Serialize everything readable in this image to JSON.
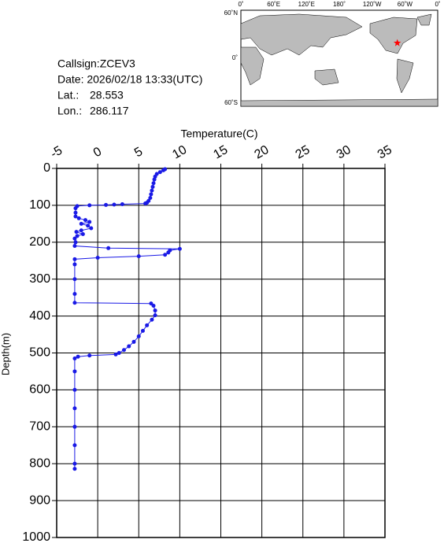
{
  "info": {
    "callsign": "Callsign:ZCEV3",
    "date": "Date:  2026/02/18 13:33(UTC)",
    "lat_label": "Lat.:",
    "lat": 28.553,
    "lon_label": "Lon.:",
    "lon": 286.117
  },
  "map": {
    "lon_labels": [
      "0˚",
      "60˚E",
      "120˚E",
      "180˚",
      "120˚W",
      "60˚W",
      "0˚"
    ],
    "lat_labels": [
      "60˚N",
      "0˚",
      "60˚S"
    ]
  },
  "chart_data": {
    "type": "line",
    "xlabel": "Temperature(C)",
    "ylabel": "Depth(m)",
    "color": "#1a1ae6",
    "grid": true,
    "xlim": [
      -5,
      35
    ],
    "xticks": [
      -5,
      0,
      5,
      10,
      15,
      20,
      25,
      30,
      35
    ],
    "ylim": [
      0,
      1000
    ],
    "yticks": [
      0,
      100,
      200,
      300,
      400,
      500,
      600,
      700,
      800,
      900,
      1000
    ],
    "temperature": [
      8.2,
      8.0,
      7.6,
      7.2,
      7.0,
      6.9,
      6.8,
      6.7,
      6.6,
      6.5,
      6.4,
      6.2,
      6.0,
      5.8,
      3.0,
      2.0,
      1.0,
      -1.0,
      -2.5,
      -2.7,
      -2.7,
      -2.7,
      -2.3,
      -1.5,
      -1.0,
      -2.0,
      -1.2,
      -0.8,
      -2.0,
      -2.6,
      -1.8,
      -2.5,
      -2.8,
      -2.7,
      -2.8,
      1.3,
      10.0,
      8.8,
      8.6,
      8.2,
      5.0,
      0.0,
      -2.8,
      -2.8,
      -2.8,
      -2.8,
      -2.8,
      6.5,
      6.8,
      7.0,
      7.0,
      6.6,
      6.0,
      5.5,
      5.0,
      4.4,
      3.8,
      3.2,
      2.6,
      2.2,
      -1.0,
      -2.4,
      -2.8,
      -2.8,
      -2.8,
      -2.8,
      -2.8,
      -2.8,
      -2.8,
      -2.8
    ],
    "depth": [
      2,
      5,
      10,
      15,
      22,
      30,
      40,
      50,
      60,
      70,
      80,
      88,
      93,
      95,
      97,
      98,
      99,
      100,
      102,
      108,
      120,
      130,
      135,
      140,
      145,
      150,
      155,
      162,
      168,
      172,
      178,
      183,
      190,
      200,
      210,
      216,
      218,
      222,
      228,
      234,
      238,
      242,
      246,
      260,
      300,
      340,
      364,
      366,
      372,
      385,
      398,
      410,
      425,
      440,
      455,
      470,
      482,
      492,
      500,
      504,
      507,
      510,
      515,
      550,
      600,
      650,
      700,
      750,
      800,
      814
    ]
  }
}
